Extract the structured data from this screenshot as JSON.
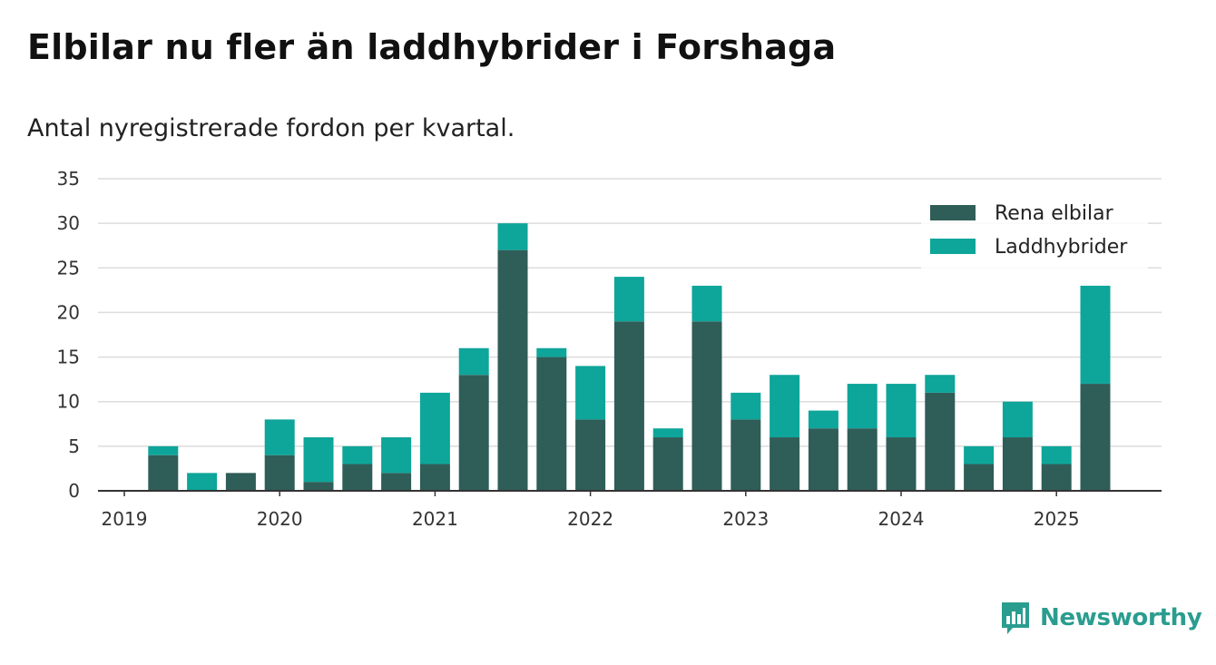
{
  "title": "Elbilar nu fler än laddhybrider i Forshaga",
  "subtitle": "Antal nyregistrerade fordon per kvartal.",
  "brand": {
    "name": "Newsworthy",
    "color": "#2a9d8f",
    "icon": "bar-chart-logo-icon"
  },
  "chart_data": {
    "type": "bar",
    "stacked": true,
    "categories": [
      "2019 Q1",
      "2019 Q2",
      "2019 Q3",
      "2019 Q4",
      "2020 Q1",
      "2020 Q2",
      "2020 Q3",
      "2020 Q4",
      "2021 Q1",
      "2021 Q2",
      "2021 Q3",
      "2021 Q4",
      "2022 Q1",
      "2022 Q2",
      "2022 Q3",
      "2022 Q4",
      "2023 Q1",
      "2023 Q2",
      "2023 Q3",
      "2023 Q4",
      "2024 Q1",
      "2024 Q2",
      "2024 Q3",
      "2024 Q4",
      "2025 Q1",
      "2025 Q2"
    ],
    "series": [
      {
        "name": "Rena elbilar",
        "color": "#2f5d58",
        "values": [
          0,
          4,
          0,
          2,
          4,
          1,
          3,
          2,
          3,
          13,
          27,
          15,
          8,
          19,
          6,
          19,
          8,
          6,
          7,
          7,
          6,
          11,
          3,
          6,
          3,
          12
        ]
      },
      {
        "name": "Laddhybrider",
        "color": "#0ea59a",
        "values": [
          0,
          1,
          2,
          0,
          4,
          5,
          2,
          4,
          8,
          3,
          3,
          1,
          6,
          5,
          1,
          4,
          3,
          7,
          2,
          5,
          6,
          2,
          2,
          4,
          2,
          11
        ]
      }
    ],
    "x_tick_labels": [
      "2019",
      "2020",
      "2021",
      "2022",
      "2023",
      "2024",
      "2025"
    ],
    "y_tick_labels": [
      "0",
      "5",
      "10",
      "15",
      "20",
      "25",
      "30",
      "35"
    ],
    "ylim": [
      0,
      35
    ],
    "grid": true,
    "legend_position": "top-right"
  }
}
